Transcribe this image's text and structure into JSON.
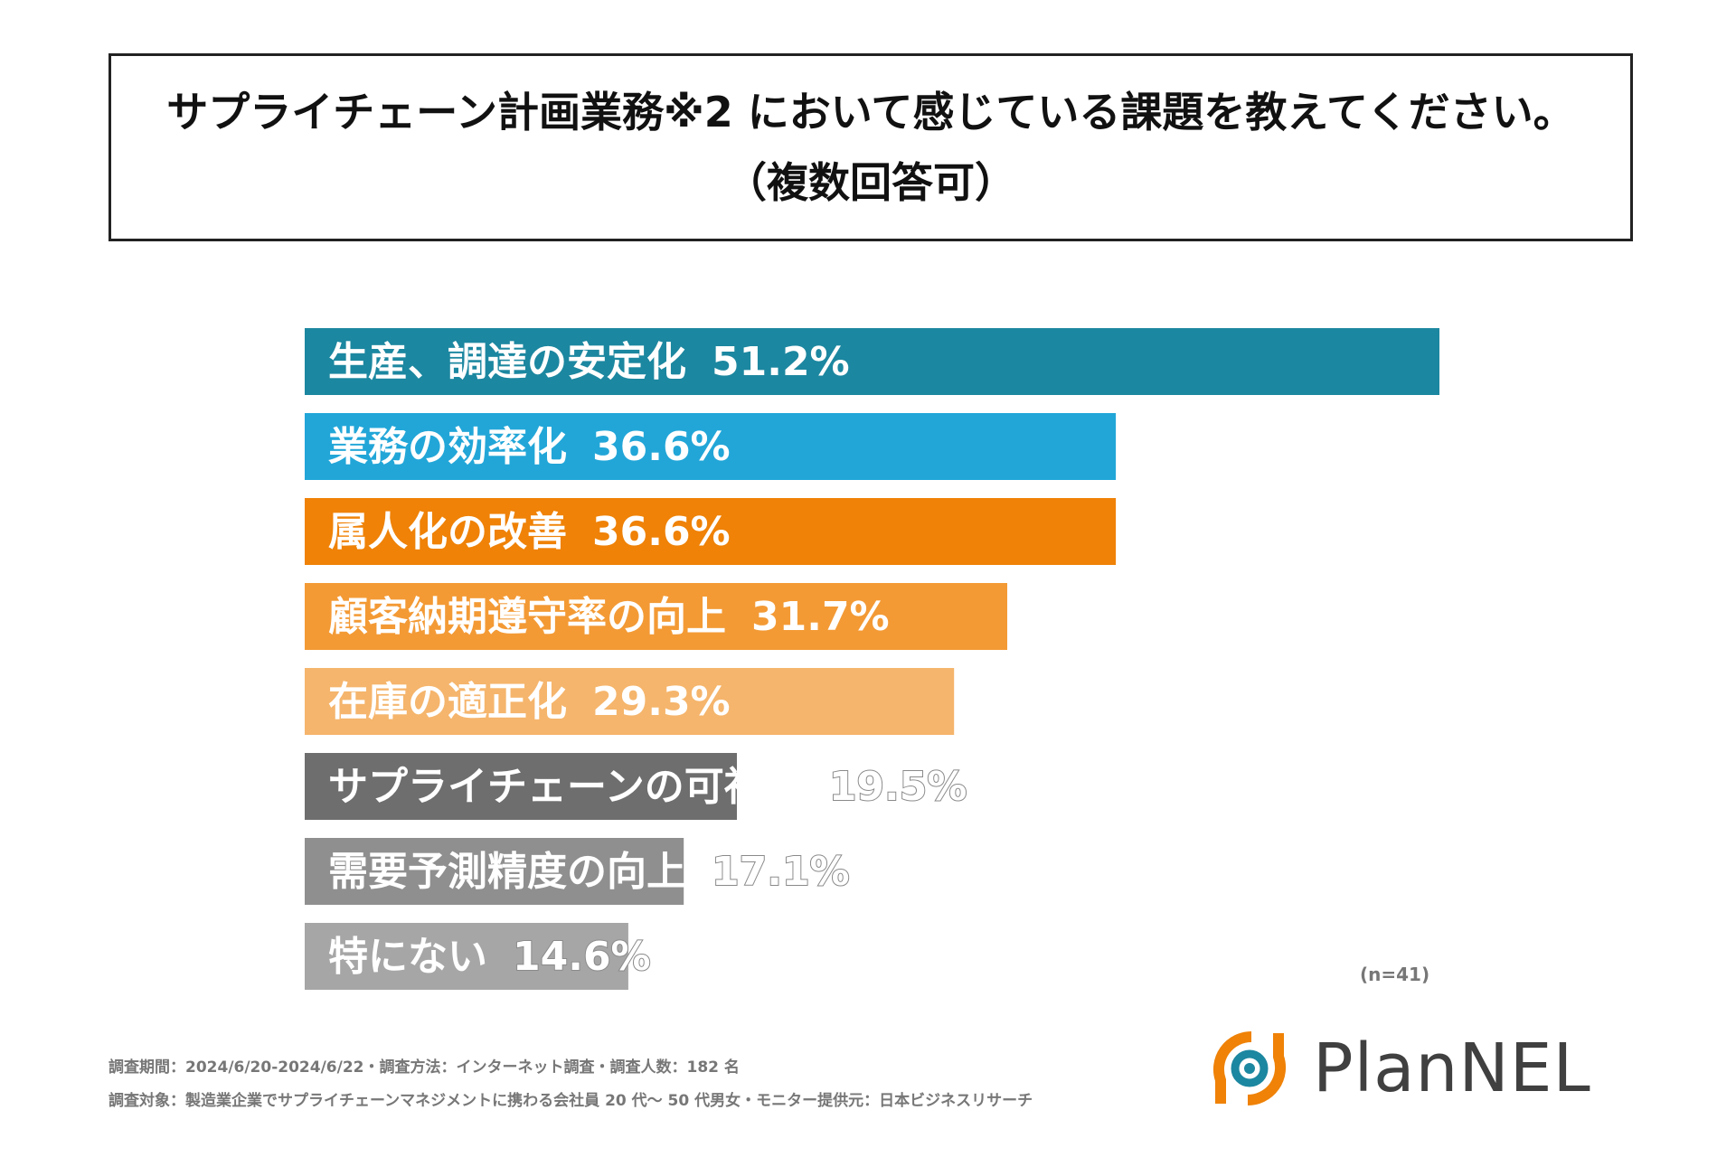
{
  "title": {
    "line1": "サプライチェーン計画業務※2 において感じている課題を教えてください。",
    "line2": "（複数回答可）"
  },
  "chart_data": {
    "type": "bar",
    "orientation": "horizontal",
    "title": "サプライチェーン計画業務※2 において感じている課題を教えてください。（複数回答可）",
    "categories": [
      "生産、調達の安定化",
      "業務の効率化",
      "属人化の改善",
      "顧客納期遵守率の向上",
      "在庫の適正化",
      "サプライチェーンの可視化",
      "需要予測精度の向上",
      "特にない"
    ],
    "values": [
      51.2,
      36.6,
      36.6,
      31.7,
      29.3,
      19.5,
      17.1,
      14.6
    ],
    "value_labels": [
      "51.2%",
      "36.6%",
      "36.6%",
      "31.7%",
      "29.3%",
      "19.5%",
      "17.1%",
      "14.6%"
    ],
    "colors": [
      "#1c87a0",
      "#22a6d8",
      "#ef8207",
      "#f39a35",
      "#f5b56c",
      "#6e6e6e",
      "#8f8f8f",
      "#a6a6a6"
    ],
    "xlim": [
      0,
      51.2
    ],
    "legend": "none",
    "grid": false
  },
  "sample_size": "(n=41)",
  "footer": {
    "line1": "調査期間：2024/6/20-2024/6/22・調査方法：インターネット調査・調査人数：182 名",
    "line2": "調査対象：製造業企業でサプライチェーンマネジメントに携わる会社員 20 代〜 50 代男女・モニター提供元：日本ビジネスリサーチ"
  },
  "brand": {
    "name": "PlanNEL",
    "logo_colors": [
      "#ef8207",
      "#1c87a0"
    ]
  }
}
